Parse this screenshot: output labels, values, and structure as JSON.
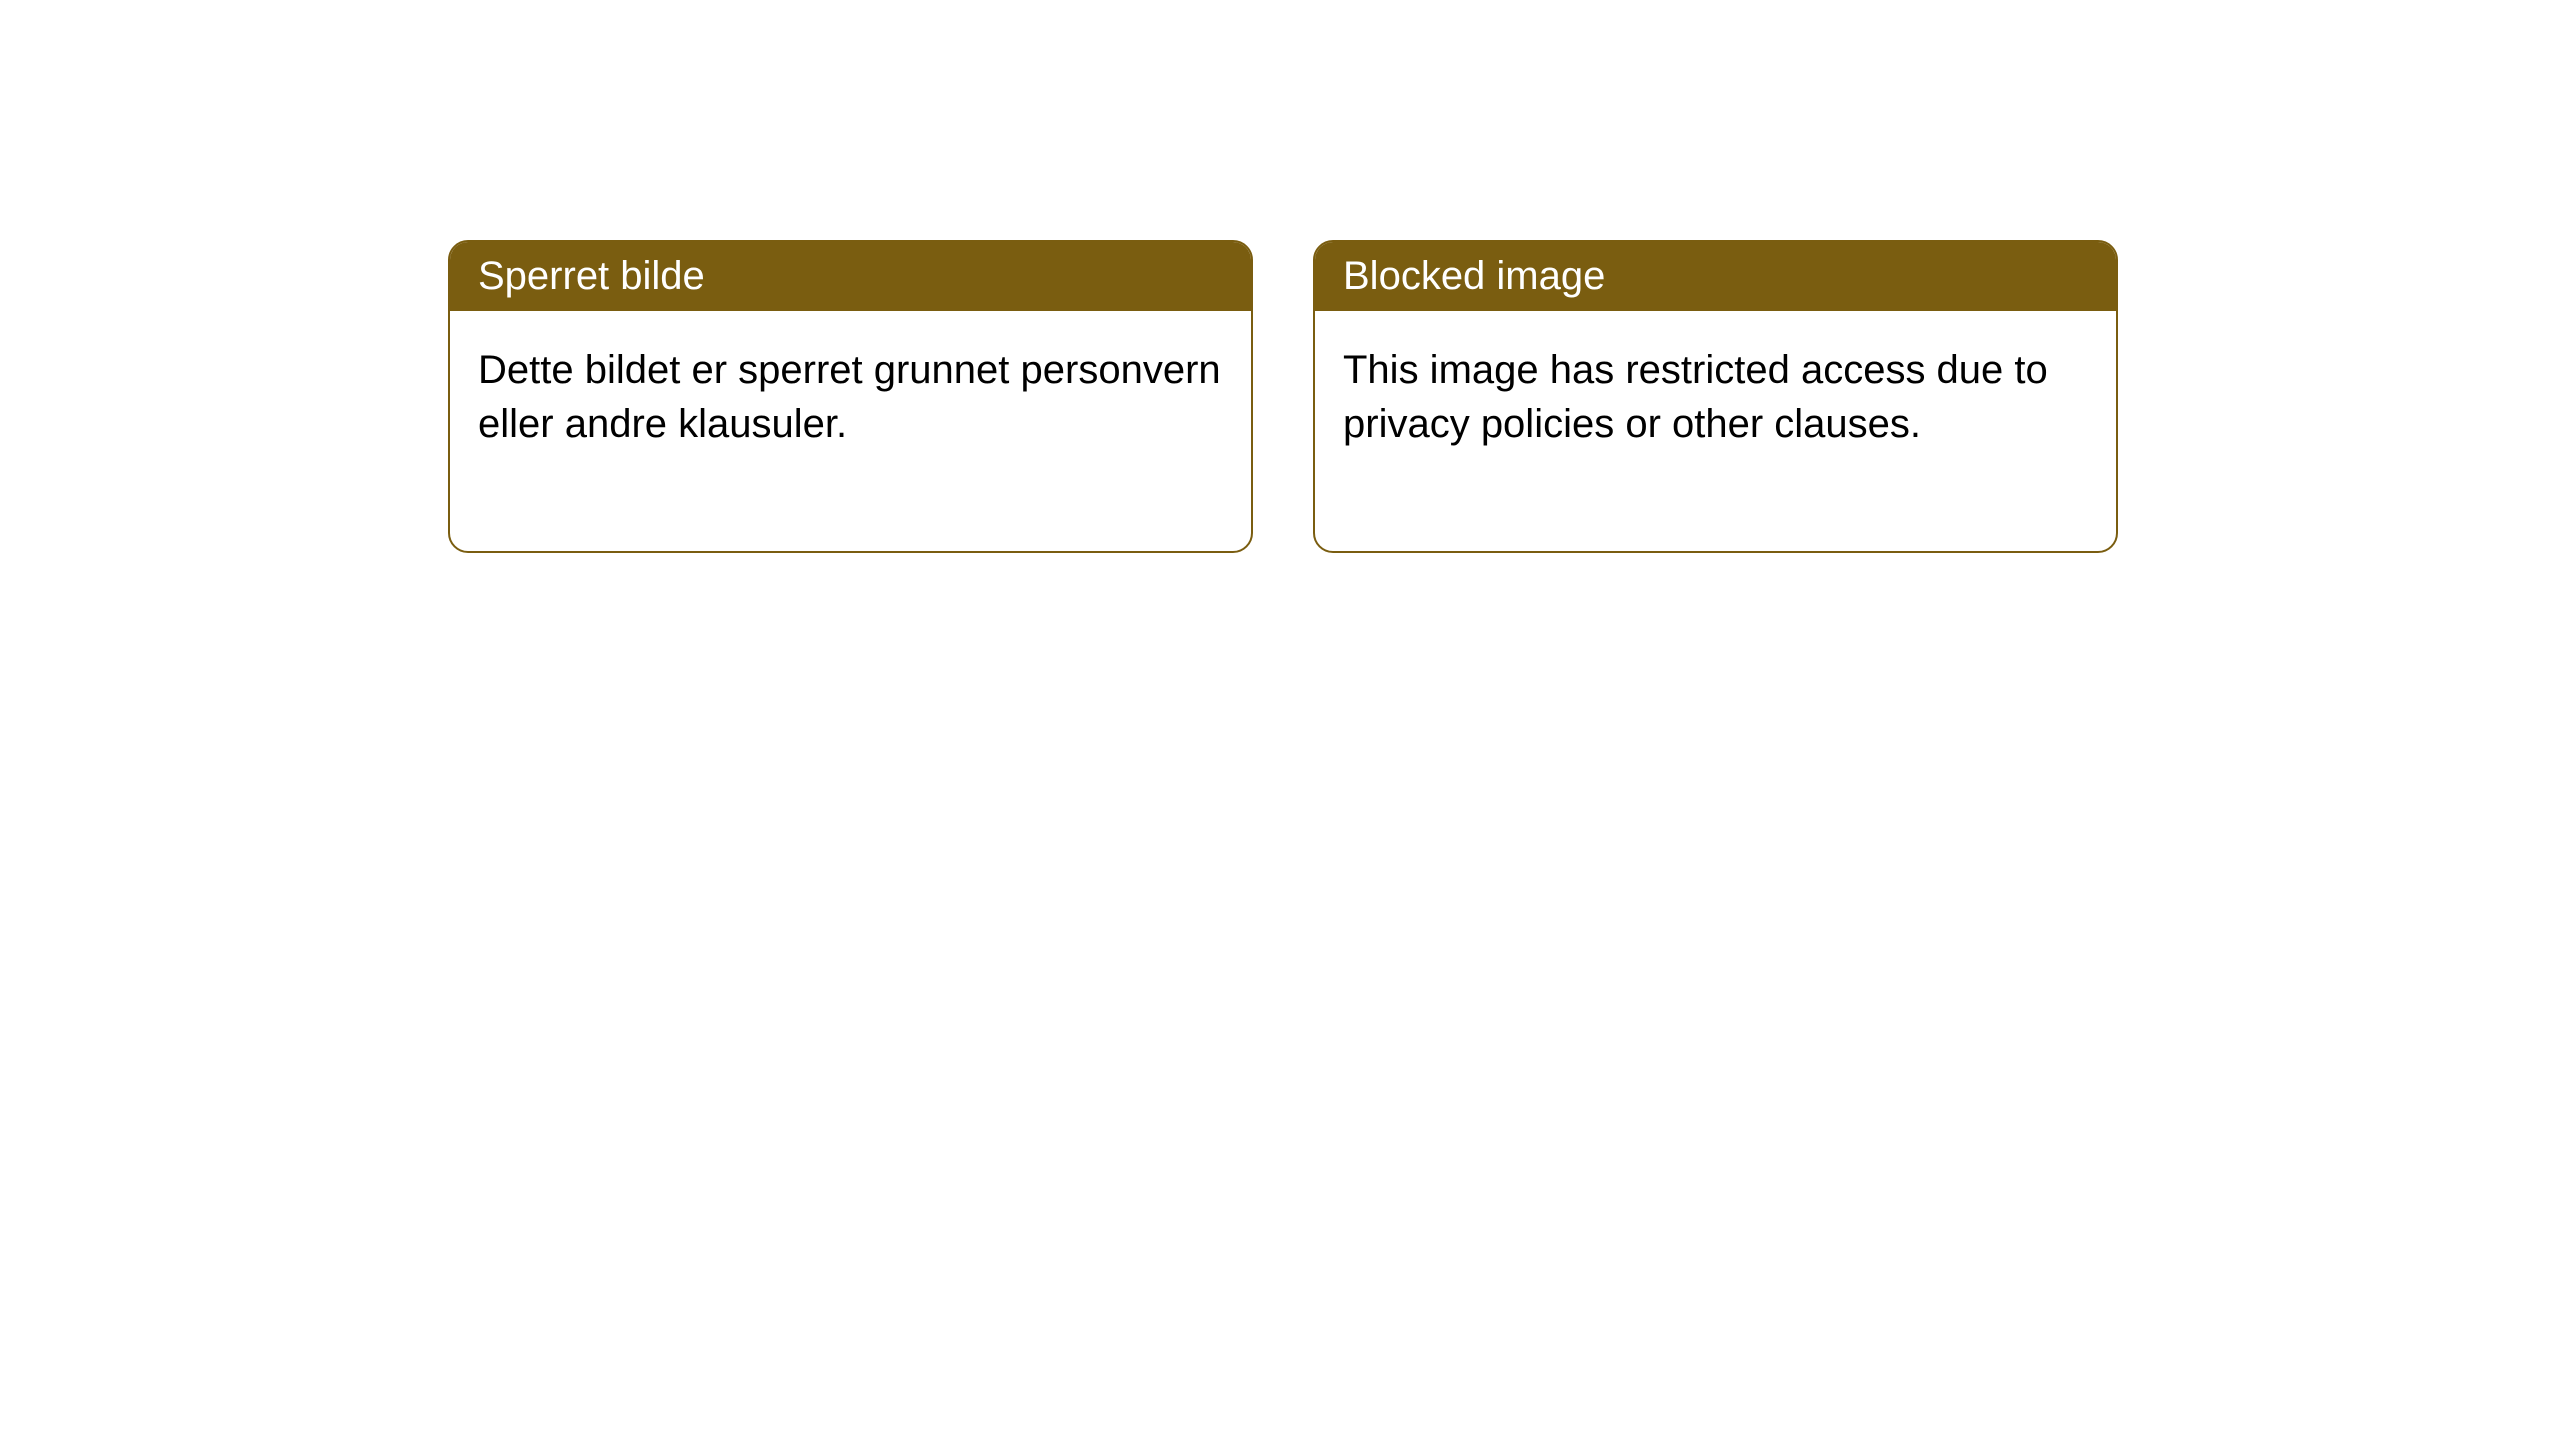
{
  "cards": [
    {
      "title": "Sperret bilde",
      "body": "Dette bildet er sperret grunnet personvern eller andre klausuler."
    },
    {
      "title": "Blocked image",
      "body": "This image has restricted access due to privacy policies or other clauses."
    }
  ],
  "style": {
    "header_bg": "#7a5d10",
    "header_text_color": "#ffffff",
    "card_border_color": "#7a5d10",
    "card_border_radius": 20,
    "card_bg": "#ffffff",
    "body_text_color": "#000000",
    "title_fontsize": 40,
    "body_fontsize": 40,
    "page_bg": "#ffffff"
  }
}
